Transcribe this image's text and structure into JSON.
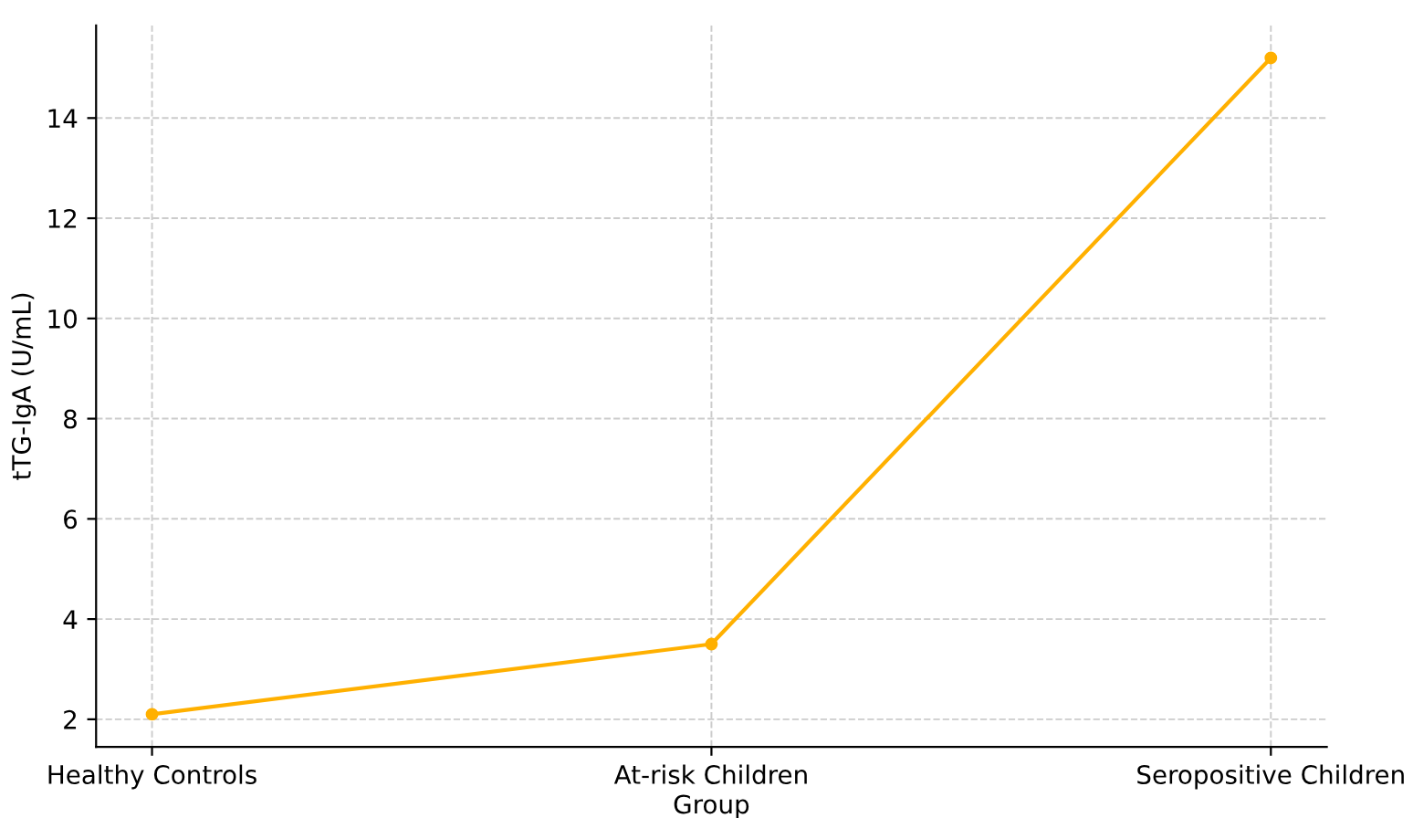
{
  "chart_data": {
    "type": "line",
    "xlabel": "Group",
    "ylabel": "tTG-IgA (U/mL)",
    "categories": [
      "Healthy Controls",
      "At-risk Children",
      "Seropositive Children"
    ],
    "series": [
      {
        "color": "#ffb000",
        "values": [
          2.1,
          3.5,
          15.2
        ]
      }
    ],
    "ylim": [
      1.45,
      15.85
    ],
    "yticks": [
      2,
      4,
      6,
      8,
      10,
      12,
      14
    ],
    "grid": true,
    "marker": "circle",
    "line_style": "solid"
  }
}
